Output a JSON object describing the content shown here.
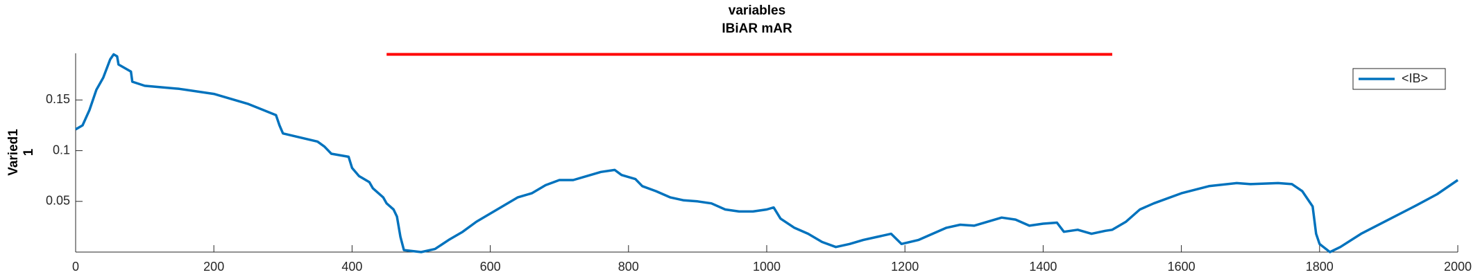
{
  "chart_data": {
    "type": "line",
    "title": [
      "variables",
      "IBiAR mAR"
    ],
    "ylabel": [
      "Varied1",
      "1"
    ],
    "xlim": [
      0,
      2000
    ],
    "ylim": [
      0,
      0.196
    ],
    "xticks": [
      0,
      200,
      400,
      600,
      800,
      1000,
      1200,
      1400,
      1600,
      1800,
      2000
    ],
    "yticks": [
      0.05,
      0.1,
      0.15
    ],
    "legend": "northeast",
    "x": [
      0,
      10,
      20,
      30,
      40,
      50,
      55,
      60,
      62,
      80,
      82,
      100,
      150,
      200,
      250,
      290,
      295,
      300,
      350,
      360,
      370,
      395,
      400,
      410,
      425,
      430,
      445,
      450,
      460,
      465,
      470,
      475,
      500,
      520,
      540,
      560,
      580,
      600,
      620,
      640,
      660,
      680,
      700,
      720,
      740,
      760,
      780,
      790,
      810,
      820,
      840,
      860,
      880,
      900,
      920,
      940,
      960,
      980,
      1000,
      1010,
      1020,
      1040,
      1060,
      1080,
      1100,
      1120,
      1140,
      1160,
      1180,
      1195,
      1220,
      1240,
      1260,
      1280,
      1300,
      1320,
      1340,
      1360,
      1380,
      1400,
      1420,
      1430,
      1450,
      1470,
      1490,
      1500,
      1520,
      1540,
      1560,
      1600,
      1640,
      1680,
      1700,
      1740,
      1760,
      1775,
      1790,
      1795,
      1800,
      1815,
      1830,
      1860,
      1900,
      1940,
      1970,
      2000
    ],
    "series": [
      {
        "name": "<IB>",
        "color": "#0072bd",
        "values": [
          0.121,
          0.125,
          0.14,
          0.16,
          0.172,
          0.19,
          0.195,
          0.193,
          0.185,
          0.178,
          0.168,
          0.164,
          0.161,
          0.156,
          0.146,
          0.135,
          0.125,
          0.117,
          0.109,
          0.104,
          0.097,
          0.094,
          0.083,
          0.075,
          0.069,
          0.063,
          0.054,
          0.048,
          0.042,
          0.035,
          0.015,
          0.002,
          0.0,
          0.003,
          0.012,
          0.02,
          0.03,
          0.038,
          0.046,
          0.054,
          0.058,
          0.066,
          0.071,
          0.071,
          0.075,
          0.079,
          0.081,
          0.076,
          0.072,
          0.065,
          0.06,
          0.054,
          0.051,
          0.05,
          0.048,
          0.042,
          0.04,
          0.04,
          0.042,
          0.044,
          0.033,
          0.024,
          0.018,
          0.01,
          0.005,
          0.008,
          0.012,
          0.015,
          0.018,
          0.008,
          0.012,
          0.018,
          0.024,
          0.027,
          0.026,
          0.03,
          0.034,
          0.032,
          0.026,
          0.028,
          0.029,
          0.02,
          0.022,
          0.018,
          0.021,
          0.022,
          0.03,
          0.042,
          0.048,
          0.058,
          0.065,
          0.068,
          0.067,
          0.068,
          0.067,
          0.06,
          0.045,
          0.018,
          0.008,
          0.0,
          0.005,
          0.018,
          0.032,
          0.046,
          0.057,
          0.071
        ]
      }
    ],
    "reference_line": {
      "x": [
        450,
        1500
      ],
      "y": [
        0.195,
        0.195
      ],
      "color": "#ff0000"
    }
  }
}
